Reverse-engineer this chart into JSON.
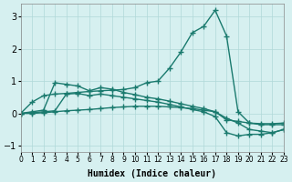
{
  "xlabel": "Humidex (Indice chaleur)",
  "ylabel": "",
  "bg_color": "#d6f0f0",
  "line_color": "#1a7a6e",
  "grid_color": "#b0d8d8",
  "xlim": [
    0,
    23
  ],
  "ylim": [
    -1.2,
    3.4
  ],
  "yticks": [
    -1,
    0,
    1,
    2,
    3
  ],
  "xticks": [
    0,
    1,
    2,
    3,
    4,
    5,
    6,
    7,
    8,
    9,
    10,
    11,
    12,
    13,
    14,
    15,
    16,
    17,
    18,
    19,
    20,
    21,
    22,
    23
  ],
  "lines": [
    {
      "x": [
        0,
        1,
        2,
        3,
        4,
        5,
        6,
        7,
        8,
        9,
        10,
        11,
        12,
        13,
        14,
        15,
        16,
        17,
        18,
        19,
        20,
        21,
        22,
        23
      ],
      "y": [
        0.0,
        0.35,
        0.55,
        0.6,
        0.62,
        0.65,
        0.68,
        0.7,
        0.72,
        0.74,
        0.8,
        0.95,
        1.0,
        1.4,
        1.9,
        2.5,
        2.7,
        3.2,
        2.4,
        0.05,
        -0.3,
        -0.35,
        -0.35,
        -0.35
      ]
    },
    {
      "x": [
        0,
        1,
        2,
        3,
        4,
        5,
        6,
        7,
        8,
        9,
        10,
        11,
        12,
        13,
        14,
        15,
        16,
        17,
        18,
        19,
        20,
        21,
        22,
        23
      ],
      "y": [
        0.0,
        0.05,
        0.1,
        0.95,
        0.9,
        0.85,
        0.7,
        0.8,
        0.75,
        0.65,
        0.58,
        0.5,
        0.45,
        0.38,
        0.3,
        0.22,
        0.15,
        0.05,
        -0.15,
        -0.3,
        -0.5,
        -0.55,
        -0.6,
        -0.5
      ]
    },
    {
      "x": [
        0,
        1,
        2,
        3,
        4,
        5,
        6,
        7,
        8,
        9,
        10,
        11,
        12,
        13,
        14,
        15,
        16,
        17,
        18,
        19,
        20,
        21,
        22,
        23
      ],
      "y": [
        0.0,
        0.02,
        0.05,
        0.08,
        0.6,
        0.62,
        0.55,
        0.6,
        0.55,
        0.5,
        0.45,
        0.4,
        0.35,
        0.28,
        0.2,
        0.12,
        0.05,
        -0.1,
        -0.6,
        -0.7,
        -0.65,
        -0.65,
        -0.6,
        -0.5
      ]
    },
    {
      "x": [
        0,
        1,
        2,
        3,
        4,
        5,
        6,
        7,
        8,
        9,
        10,
        11,
        12,
        13,
        14,
        15,
        16,
        17,
        18,
        19,
        20,
        21,
        22,
        23
      ],
      "y": [
        0.0,
        0.0,
        0.02,
        0.05,
        0.08,
        0.1,
        0.12,
        0.15,
        0.18,
        0.2,
        0.22,
        0.22,
        0.22,
        0.2,
        0.18,
        0.15,
        0.1,
        0.05,
        -0.2,
        -0.25,
        -0.3,
        -0.32,
        -0.32,
        -0.3
      ]
    }
  ]
}
